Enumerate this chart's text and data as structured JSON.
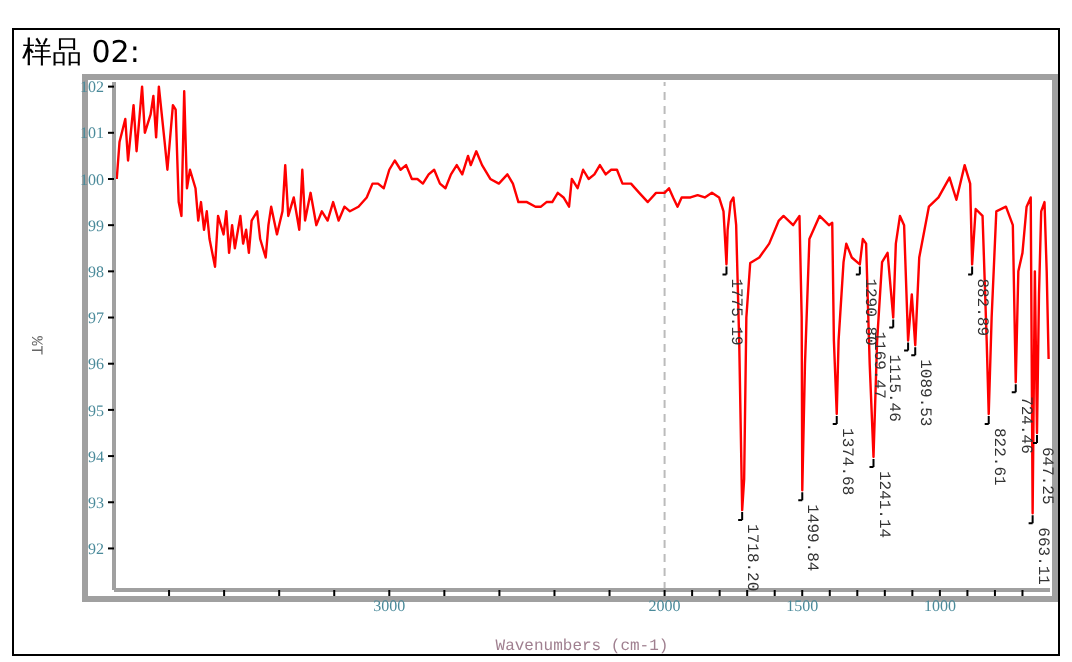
{
  "chart_data": {
    "type": "line",
    "title": "样品 02:",
    "xlabel": "Wavenumbers (cm-1)",
    "ylabel": "%T",
    "color": "#ff0000",
    "x": [
      3990,
      3980,
      3959,
      3949,
      3929,
      3918,
      3898,
      3888,
      3867,
      3857,
      3847,
      3837,
      3816,
      3806,
      3786,
      3776,
      3765,
      3755,
      3745,
      3735,
      3724,
      3704,
      3694,
      3684,
      3673,
      3663,
      3653,
      3633,
      3622,
      3602,
      3592,
      3582,
      3571,
      3561,
      3541,
      3531,
      3520,
      3510,
      3500,
      3480,
      3469,
      3449,
      3439,
      3429,
      3408,
      3388,
      3378,
      3367,
      3347,
      3327,
      3316,
      3306,
      3286,
      3265,
      3245,
      3224,
      3204,
      3184,
      3163,
      3143,
      3112,
      3082,
      3061,
      3041,
      3020,
      3000,
      2980,
      2959,
      2939,
      2918,
      2898,
      2878,
      2857,
      2837,
      2816,
      2796,
      2776,
      2755,
      2735,
      2714,
      2704,
      2684,
      2663,
      2633,
      2602,
      2571,
      2551,
      2531,
      2500,
      2469,
      2449,
      2429,
      2408,
      2388,
      2367,
      2347,
      2337,
      2316,
      2296,
      2276,
      2255,
      2235,
      2214,
      2194,
      2173,
      2153,
      2122,
      2092,
      2061,
      2031,
      2000,
      1984,
      1969,
      1953,
      1938,
      1922,
      1906,
      1880,
      1854,
      1828,
      1802,
      1786,
      1775.19,
      1771,
      1760,
      1750,
      1740,
      1729,
      1718.2,
      1711,
      1703,
      1689,
      1656,
      1620,
      1585,
      1568,
      1533,
      1510,
      1502,
      1499.84,
      1490,
      1474,
      1437,
      1403,
      1391,
      1385,
      1374.68,
      1368,
      1350,
      1340,
      1320,
      1290.8,
      1280,
      1268,
      1255,
      1241.14,
      1228,
      1210,
      1190,
      1169.47,
      1160,
      1145,
      1130,
      1115.46,
      1102,
      1089.53,
      1075,
      1040,
      1005,
      965,
      940,
      910,
      890,
      882.89,
      870,
      845,
      830,
      822.61,
      812,
      795,
      760,
      735,
      724.46,
      715,
      700,
      685,
      670,
      663.11,
      655,
      647.25,
      640,
      632,
      620,
      612,
      605
    ],
    "values": [
      100.0,
      100.8,
      101.3,
      100.4,
      101.6,
      100.6,
      102.0,
      101.0,
      101.4,
      101.8,
      100.9,
      102.0,
      100.8,
      100.2,
      101.6,
      101.5,
      99.5,
      99.2,
      101.9,
      99.8,
      100.2,
      99.8,
      99.1,
      99.5,
      98.9,
      99.3,
      98.7,
      98.1,
      99.2,
      98.8,
      99.3,
      98.4,
      99.0,
      98.5,
      99.2,
      98.6,
      98.9,
      98.4,
      99.1,
      99.3,
      98.7,
      98.3,
      99.0,
      99.4,
      98.8,
      99.3,
      100.3,
      99.2,
      99.6,
      98.9,
      100.2,
      99.1,
      99.7,
      99.0,
      99.3,
      99.1,
      99.5,
      99.1,
      99.4,
      99.3,
      99.4,
      99.6,
      99.9,
      99.9,
      99.8,
      100.2,
      100.4,
      100.2,
      100.3,
      100.0,
      100.0,
      99.9,
      100.1,
      100.2,
      99.9,
      99.8,
      100.1,
      100.3,
      100.1,
      100.5,
      100.3,
      100.6,
      100.3,
      100.0,
      99.9,
      100.1,
      99.9,
      99.5,
      99.5,
      99.4,
      99.4,
      99.5,
      99.5,
      99.7,
      99.6,
      99.4,
      100.0,
      99.8,
      100.2,
      100.0,
      100.1,
      100.3,
      100.1,
      100.2,
      100.2,
      99.9,
      99.9,
      99.7,
      99.5,
      99.7,
      99.7,
      99.8,
      99.6,
      99.4,
      99.6,
      99.6,
      99.6,
      99.65,
      99.6,
      99.7,
      99.6,
      99.3,
      98.15,
      98.9,
      99.5,
      99.6,
      99.0,
      96.5,
      92.83,
      93.5,
      97.0,
      98.18,
      98.3,
      98.6,
      99.1,
      99.2,
      99.0,
      99.2,
      97.0,
      93.26,
      96.0,
      98.7,
      99.2,
      99.0,
      99.05,
      96.5,
      94.91,
      96.5,
      98.2,
      98.6,
      98.3,
      98.15,
      98.7,
      98.6,
      96.0,
      93.98,
      96.5,
      98.2,
      98.4,
      97.0,
      98.6,
      99.2,
      99.0,
      96.5,
      97.5,
      96.4,
      98.3,
      99.4,
      99.6,
      100.03,
      99.55,
      100.3,
      99.9,
      98.15,
      99.35,
      99.2,
      96.5,
      94.91,
      97.0,
      99.3,
      99.4,
      99.0,
      95.6,
      98.0,
      98.4,
      99.4,
      99.6,
      92.76,
      98.0,
      94.5,
      97.5,
      99.3,
      99.5,
      98.0,
      96.1
    ],
    "xlim": [
      4000,
      600
    ],
    "xticks": [
      {
        "value": 3800,
        "label": null
      },
      {
        "value": 3600,
        "label": null
      },
      {
        "value": 3400,
        "label": null
      },
      {
        "value": 3200,
        "label": null
      },
      3000,
      {
        "value": 2800,
        "label": null
      },
      {
        "value": 2600,
        "label": null
      },
      {
        "value": 2400,
        "label": null
      },
      {
        "value": 2200,
        "label": null
      },
      2000,
      {
        "value": 1900,
        "label": null
      },
      {
        "value": 1800,
        "label": null
      },
      {
        "value": 1700,
        "label": null
      },
      {
        "value": 1600,
        "label": null
      },
      1500,
      {
        "value": 1400,
        "label": null
      },
      {
        "value": 1300,
        "label": null
      },
      {
        "value": 1200,
        "label": null
      },
      {
        "value": 1100,
        "label": null
      },
      1000,
      {
        "value": 900,
        "label": null
      },
      {
        "value": 800,
        "label": null
      },
      {
        "value": 700,
        "label": null
      }
    ],
    "ylim": [
      91.1,
      102.1
    ],
    "yticks": [
      92,
      93,
      94,
      95,
      96,
      97,
      98,
      99,
      100,
      101,
      102
    ],
    "ref_lines": [
      {
        "axis": "x",
        "value": 2000,
        "color": "#bbbbbb",
        "line_style": "dashed"
      }
    ],
    "annotations": [
      {
        "text": "1775.19",
        "x": 1775.19,
        "y": 98.15
      },
      {
        "text": "1718.20",
        "x": 1718.2,
        "y": 92.83
      },
      {
        "text": "1499.84",
        "x": 1499.84,
        "y": 93.26
      },
      {
        "text": "1374.68",
        "x": 1374.68,
        "y": 94.91
      },
      {
        "text": "1290.80",
        "x": 1290.8,
        "y": 98.15
      },
      {
        "text": "1241.14",
        "x": 1241.14,
        "y": 93.98
      },
      {
        "text": "1169.47",
        "x": 1169.47,
        "y": 97.0
      },
      {
        "text": "1115.46",
        "x": 1115.46,
        "y": 96.5
      },
      {
        "text": "1089.53",
        "x": 1089.53,
        "y": 96.4
      },
      {
        "text": "882.89",
        "x": 882.89,
        "y": 98.15
      },
      {
        "text": "822.61",
        "x": 822.61,
        "y": 94.91
      },
      {
        "text": "724.46",
        "x": 724.46,
        "y": 95.6
      },
      {
        "text": "663.11",
        "x": 663.11,
        "y": 92.76
      },
      {
        "text": "647.25",
        "x": 647.25,
        "y": 94.5
      }
    ]
  }
}
